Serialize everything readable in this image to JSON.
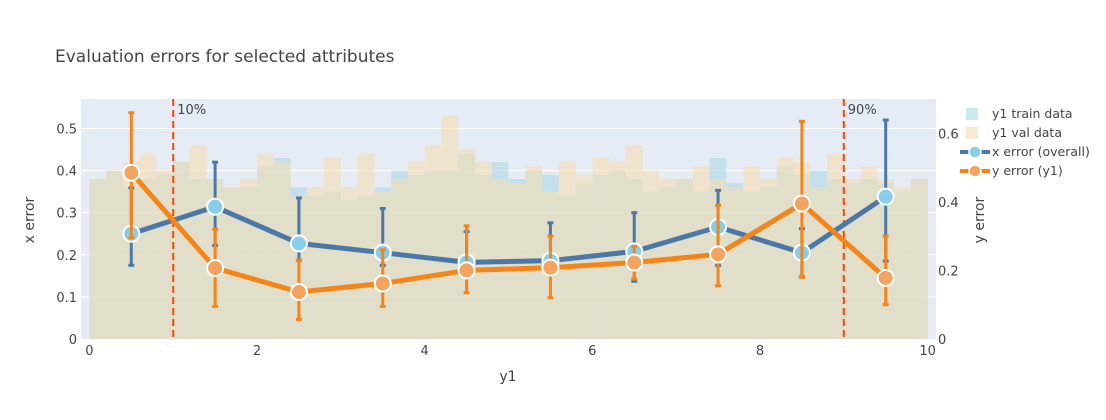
{
  "chart_data": {
    "type": "line",
    "title": "Evaluation errors for selected attributes",
    "xlabel": "y1",
    "ylabel": "x error",
    "y2label": "y error",
    "xlim": [
      -0.1,
      10.1
    ],
    "ylim": [
      0,
      0.57
    ],
    "y2lim": [
      0,
      0.7
    ],
    "xticks": [
      0,
      2,
      4,
      6,
      8,
      10
    ],
    "yticks": [
      0,
      0.1,
      0.2,
      0.3,
      0.4,
      0.5
    ],
    "y2ticks": [
      0,
      0.2,
      0.4,
      0.6
    ],
    "grid": true,
    "legend_position": "right",
    "colors": {
      "plot_bg": "#e5ecf6",
      "x_error": "#4c78a8",
      "x_marker": "#87ceeb",
      "y_error": "#f58518",
      "y_marker": "#f4a460",
      "train_hist": "#add8e6",
      "val_hist": "#f5deb3",
      "quantile_line": "#ff4500",
      "y1label_color": "#4c78a8",
      "y2label_color": "#f58518"
    },
    "histograms": {
      "bin_start": 0,
      "bin_width": 0.2,
      "train": [
        0.38,
        0.4,
        0.36,
        0.38,
        0.39,
        0.42,
        0.38,
        0.38,
        0.36,
        0.36,
        0.41,
        0.43,
        0.36,
        0.34,
        0.35,
        0.33,
        0.34,
        0.36,
        0.4,
        0.39,
        0.4,
        0.4,
        0.44,
        0.39,
        0.42,
        0.38,
        0.4,
        0.39,
        0.34,
        0.37,
        0.39,
        0.4,
        0.38,
        0.35,
        0.36,
        0.38,
        0.35,
        0.43,
        0.37,
        0.35,
        0.36,
        0.41,
        0.39,
        0.4,
        0.38,
        0.37,
        0.38,
        0.37,
        0.35,
        0.38
      ],
      "val": [
        0.38,
        0.4,
        0.42,
        0.44,
        0.4,
        0.42,
        0.46,
        0.38,
        0.36,
        0.38,
        0.44,
        0.42,
        0.34,
        0.36,
        0.43,
        0.36,
        0.44,
        0.35,
        0.38,
        0.42,
        0.46,
        0.53,
        0.45,
        0.42,
        0.38,
        0.37,
        0.41,
        0.35,
        0.42,
        0.39,
        0.43,
        0.42,
        0.46,
        0.4,
        0.38,
        0.38,
        0.41,
        0.38,
        0.36,
        0.41,
        0.38,
        0.43,
        0.42,
        0.36,
        0.44,
        0.38,
        0.41,
        0.38,
        0.36,
        0.38
      ]
    },
    "quantile_lines": [
      {
        "x": 1,
        "label": "10%"
      },
      {
        "x": 9,
        "label": "90%"
      }
    ],
    "series": [
      {
        "name": "x error (overall)",
        "axis": "y",
        "x": [
          0.5,
          1.5,
          2.5,
          3.5,
          4.5,
          5.5,
          6.5,
          7.5,
          8.5,
          9.5
        ],
        "y": [
          0.25,
          0.314,
          0.227,
          0.205,
          0.182,
          0.186,
          0.208,
          0.266,
          0.205,
          0.338
        ],
        "err_low": [
          0.175,
          0.222,
          0.187,
          0.175,
          0.175,
          0.175,
          0.137,
          0.175,
          0.148,
          0.185
        ],
        "err_high": [
          0.359,
          0.42,
          0.335,
          0.31,
          0.255,
          0.276,
          0.3,
          0.353,
          0.262,
          0.52
        ]
      },
      {
        "name": "y error (y1)",
        "axis": "y2",
        "x": [
          0.5,
          1.5,
          2.5,
          3.5,
          4.5,
          5.5,
          6.5,
          7.5,
          8.5,
          9.5
        ],
        "y": [
          0.485,
          0.207,
          0.137,
          0.162,
          0.2,
          0.208,
          0.223,
          0.247,
          0.395,
          0.178
        ],
        "err_low": [
          0.295,
          0.095,
          0.057,
          0.095,
          0.135,
          0.12,
          0.175,
          0.155,
          0.18,
          0.1
        ],
        "err_high": [
          0.66,
          0.32,
          0.23,
          0.26,
          0.33,
          0.3,
          0.27,
          0.39,
          0.635,
          0.3
        ]
      }
    ],
    "legend": [
      "y1 train data",
      "y1 val data",
      "x error (overall)",
      "y error (y1)"
    ]
  }
}
